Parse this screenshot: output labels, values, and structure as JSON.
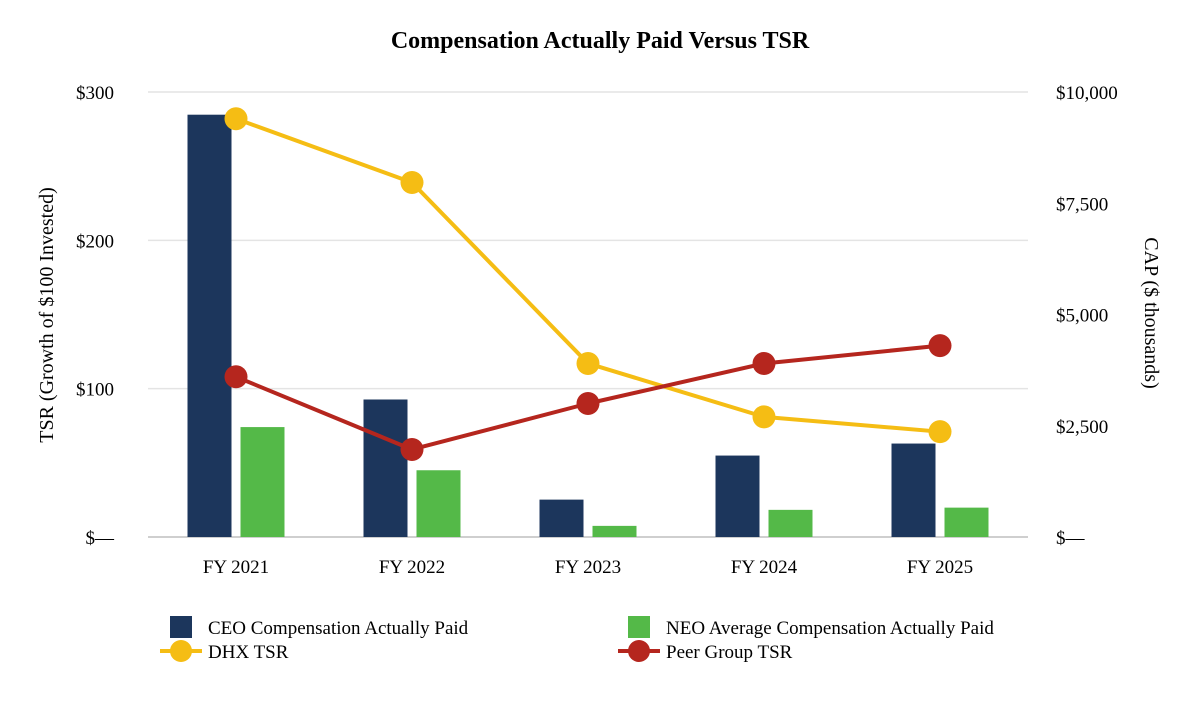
{
  "chart_data": {
    "type": "bar",
    "title": "Compensation Actually Paid Versus TSR",
    "categories": [
      "FY 2021",
      "FY 2022",
      "FY 2023",
      "FY 2024",
      "FY 2025"
    ],
    "left_axis": {
      "label": "TSR (Growth of $100 Invested)",
      "range": [
        0,
        300
      ],
      "ticks": [
        0,
        100,
        200,
        300
      ],
      "tick_labels": [
        "$—",
        "$100",
        "$200",
        "$300"
      ]
    },
    "right_axis": {
      "label": "CAP ($ thousands)",
      "range": [
        0,
        10000
      ],
      "ticks": [
        0,
        2500,
        5000,
        7500,
        10000
      ],
      "tick_labels": [
        "$—",
        "$2,500",
        "$5,000",
        "$7,500",
        "$10,000"
      ]
    },
    "grid": true,
    "legend_position": "bottom",
    "series": [
      {
        "name": "CEO Compensation Actually Paid",
        "type": "bar",
        "axis": "right",
        "color": "#1c365c",
        "values": [
          9490,
          3090,
          840,
          1830,
          2100
        ]
      },
      {
        "name": "NEO Average Compensation Actually Paid",
        "type": "bar",
        "axis": "right",
        "color": "#54b948",
        "values": [
          2470,
          1500,
          250,
          610,
          660
        ]
      },
      {
        "name": "DHX TSR",
        "type": "line",
        "axis": "left",
        "color": "#f5bd14",
        "values": [
          282,
          239,
          117,
          81,
          71
        ]
      },
      {
        "name": "Peer Group TSR",
        "type": "line",
        "axis": "left",
        "color": "#b5261e",
        "values": [
          108,
          59,
          90,
          117,
          129
        ]
      }
    ]
  }
}
